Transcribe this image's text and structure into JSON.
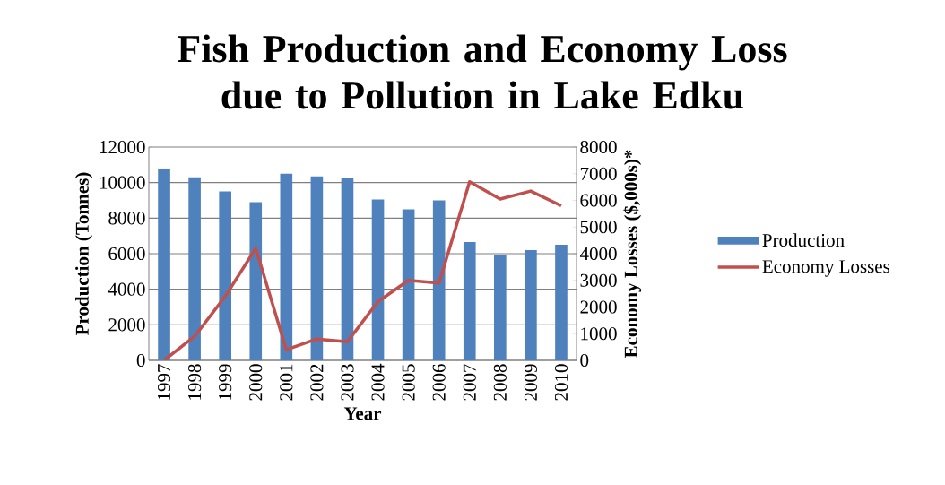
{
  "chart_data": {
    "type": "bar",
    "title": "Fish Production and Economy Loss due to Pollution in Lake Edku",
    "xlabel": "Year",
    "ylabel": "Production (Tonnes)",
    "y2label": "Economy Losses ($,000s)*",
    "categories": [
      "1997",
      "1998",
      "1999",
      "2000",
      "2001",
      "2002",
      "2003",
      "2004",
      "2005",
      "2006",
      "2007",
      "2008",
      "2009",
      "2010"
    ],
    "series": [
      {
        "name": "Production",
        "color": "#4f81bd",
        "values": [
          10800,
          10300,
          9500,
          8900,
          10500,
          10350,
          10250,
          9050,
          8500,
          9000,
          6650,
          5900,
          6200,
          6500
        ]
      },
      {
        "name": "Economy Losses",
        "type": "line",
        "axis": "y2",
        "color": "#c0504d",
        "values": [
          0,
          900,
          2400,
          4200,
          400,
          800,
          700,
          2200,
          3000,
          2900,
          6700,
          6050,
          6350,
          5800
        ]
      }
    ],
    "ylim": [
      0,
      12000
    ],
    "yticks": [
      0,
      2000,
      4000,
      6000,
      8000,
      10000,
      12000
    ],
    "y2lim": [
      0,
      8000
    ],
    "y2ticks": [
      0,
      1000,
      2000,
      3000,
      4000,
      5000,
      6000,
      7000,
      8000
    ],
    "grid": "y",
    "legend": "right",
    "marker": "none"
  }
}
